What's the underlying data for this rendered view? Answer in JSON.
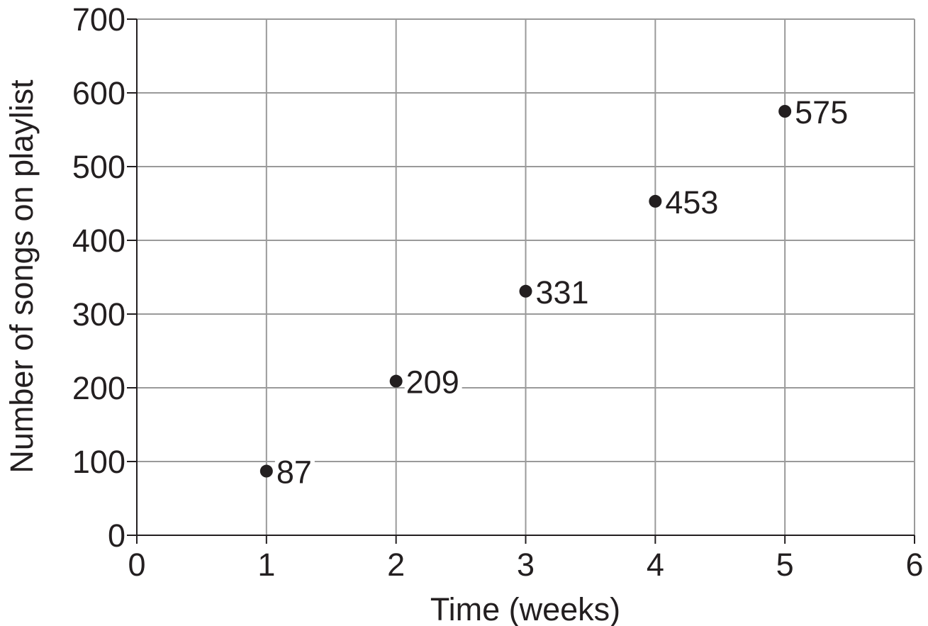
{
  "chart_data": {
    "type": "scatter",
    "title": "",
    "xlabel": "Time (weeks)",
    "ylabel": "Number of songs on playlist",
    "xlim": [
      0,
      6
    ],
    "ylim": [
      0,
      700
    ],
    "x_ticks": [
      0,
      1,
      2,
      3,
      4,
      5,
      6
    ],
    "y_ticks": [
      0,
      100,
      200,
      300,
      400,
      500,
      600,
      700
    ],
    "grid": true,
    "legend": "none",
    "point_color": "#231f20",
    "points": [
      {
        "x": 1,
        "y": 87,
        "label": "87"
      },
      {
        "x": 2,
        "y": 209,
        "label": "209"
      },
      {
        "x": 3,
        "y": 331,
        "label": "331"
      },
      {
        "x": 4,
        "y": 453,
        "label": "453"
      },
      {
        "x": 5,
        "y": 575,
        "label": "575"
      }
    ]
  }
}
